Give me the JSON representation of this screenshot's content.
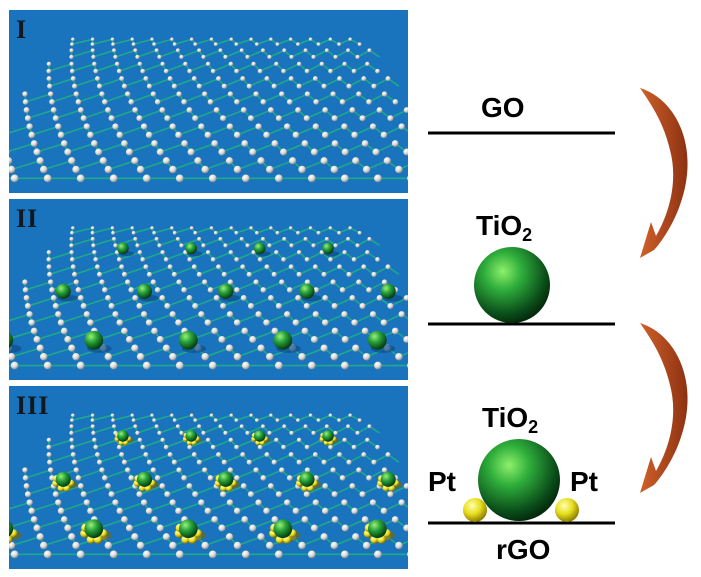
{
  "panels": [
    {
      "label": "I"
    },
    {
      "label": "II"
    },
    {
      "label": "III"
    }
  ],
  "schematic": {
    "step1": {
      "label": "GO"
    },
    "step2": {
      "label_main": "TiO",
      "label_sub": "2"
    },
    "step3": {
      "label_main": "TiO",
      "label_sub": "2",
      "left_label": "Pt",
      "right_label": "Pt",
      "bottom_label": "rGO"
    }
  },
  "colors": {
    "panel_bg": "#1a74bd",
    "bond": "#1fa88a",
    "carbon_atom": "#e8e8e8",
    "tio2": "#1e8c3a",
    "pt": "#f0e020",
    "arrow": "#b64a1f"
  }
}
